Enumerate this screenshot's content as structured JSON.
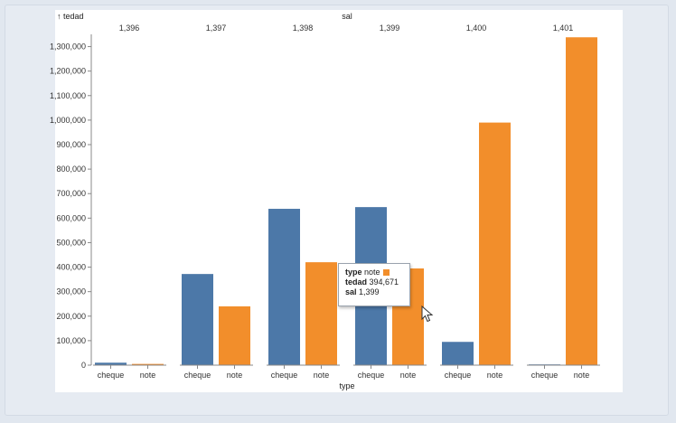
{
  "colors": {
    "cheque": "#4c78a8",
    "note": "#f28e2b"
  },
  "chart_data": {
    "type": "bar",
    "title": "",
    "column_title": "sal",
    "xlabel": "type",
    "ylabel": "tedad",
    "ylabel_display": "↑ tedad",
    "ylim": [
      0,
      1350000
    ],
    "yticks": [
      0,
      100000,
      200000,
      300000,
      400000,
      500000,
      600000,
      700000,
      800000,
      900000,
      1000000,
      1100000,
      1200000,
      1300000
    ],
    "ytick_labels": [
      "0",
      "100,000",
      "200,000",
      "300,000",
      "400,000",
      "500,000",
      "600,000",
      "700,000",
      "800,000",
      "900,000",
      "1,000,000",
      "1,100,000",
      "1,200,000",
      "1,300,000"
    ],
    "categories": [
      "cheque",
      "note"
    ],
    "facets": [
      {
        "label": "1,396",
        "values": [
          10000,
          5000
        ]
      },
      {
        "label": "1,397",
        "values": [
          372000,
          240000
        ]
      },
      {
        "label": "1,398",
        "values": [
          638000,
          420000
        ]
      },
      {
        "label": "1,399",
        "values": [
          645000,
          394671
        ]
      },
      {
        "label": "1,400",
        "values": [
          95000,
          990000
        ]
      },
      {
        "label": "1,401",
        "values": [
          3000,
          1338000
        ]
      }
    ],
    "grid": false,
    "legend": "none"
  },
  "tooltip": {
    "type_key": "type",
    "type_val": "note",
    "tedad_key": "tedad",
    "tedad_val": "394,671",
    "sal_key": "sal",
    "sal_val": "1,399"
  }
}
